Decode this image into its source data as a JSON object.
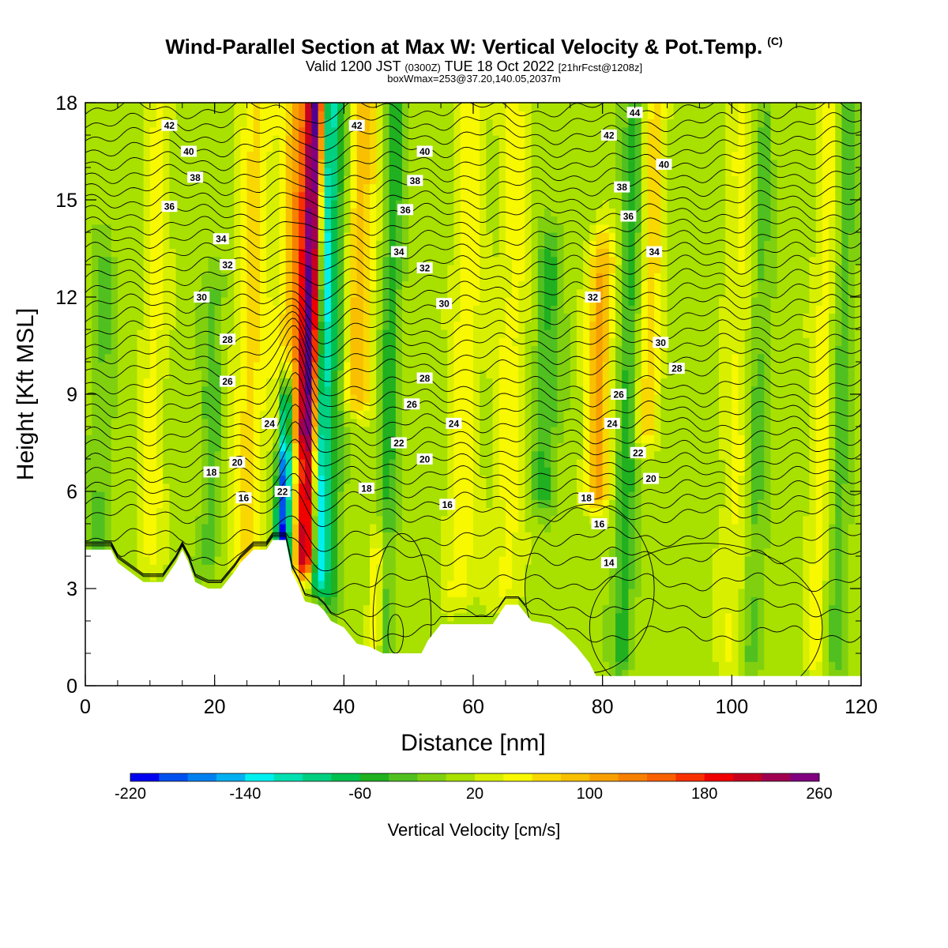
{
  "title": {
    "main": "Wind-Parallel Section at Max W: Vertical Velocity & Pot.Temp.",
    "copyright": "(C)",
    "valid_prefix": "Valid 1200 JST",
    "valid_utc": "(0300Z)",
    "valid_date": "TUE 18 Oct 2022",
    "forecast": "[21hrFcst@1208z]",
    "box_info": "boxWmax=253@37.20,140.05,2037m"
  },
  "chart_data": {
    "type": "heatmap",
    "xlabel": "Distance [nm]",
    "ylabel": "Height [Kft MSL]",
    "xlim": [
      0,
      120
    ],
    "ylim": [
      0,
      18
    ],
    "x_ticks": [
      "0",
      "20",
      "40",
      "60",
      "80",
      "100",
      "120"
    ],
    "y_ticks": [
      "0",
      "3",
      "6",
      "9",
      "12",
      "15",
      "18"
    ],
    "colorbar": {
      "label": "Vertical Velocity [cm/s]",
      "tick_labels": [
        "-220",
        "-140",
        "-60",
        "20",
        "100",
        "180",
        "260"
      ],
      "levels": [
        -220,
        -200,
        -180,
        -160,
        -140,
        -120,
        -100,
        -80,
        -60,
        -40,
        -20,
        0,
        20,
        40,
        60,
        80,
        100,
        120,
        140,
        160,
        180,
        200,
        220,
        240,
        260
      ],
      "colors": [
        "#0000f0",
        "#0050f0",
        "#0080f0",
        "#00b0f0",
        "#00f0f0",
        "#00e0b0",
        "#00d080",
        "#00c050",
        "#20b020",
        "#50c020",
        "#80d010",
        "#a8e000",
        "#d8f000",
        "#f8f800",
        "#f8d800",
        "#f8c000",
        "#f8a000",
        "#f88000",
        "#f86000",
        "#f83000",
        "#f00000",
        "#c80020",
        "#a00050",
        "#800080",
        "#500090"
      ]
    },
    "w_features": [
      {
        "x": 34,
        "ztop": 18,
        "zbot": 4,
        "w": 220,
        "width": 1.6
      },
      {
        "x": 32,
        "ztop": 18,
        "zbot": 8,
        "w": 100,
        "width": 2.5
      },
      {
        "x": 30.5,
        "ztop": 8.5,
        "zbot": 4,
        "w": -210,
        "width": 1.1
      },
      {
        "x": 36,
        "ztop": 18,
        "zbot": 3.5,
        "w": -150,
        "width": 1.2
      },
      {
        "x": 38,
        "ztop": 18,
        "zbot": 3,
        "w": -60,
        "width": 1.5
      },
      {
        "x": 42,
        "ztop": 18,
        "zbot": 9,
        "w": 80,
        "width": 2.5
      },
      {
        "x": 46,
        "ztop": 18,
        "zbot": 1,
        "w": -60,
        "width": 1.5
      },
      {
        "x": 45,
        "ztop": 4,
        "zbot": 1,
        "w": 80,
        "width": 1.3
      },
      {
        "x": 25,
        "ztop": 18,
        "zbot": 4,
        "w": 60,
        "width": 2.5
      },
      {
        "x": 19,
        "ztop": 12,
        "zbot": 4,
        "w": -40,
        "width": 1.5
      },
      {
        "x": 79,
        "ztop": 13,
        "zbot": 6,
        "w": 100,
        "width": 2.0
      },
      {
        "x": 83,
        "ztop": 18,
        "zbot": 1,
        "w": -60,
        "width": 1.5
      },
      {
        "x": 87,
        "ztop": 18,
        "zbot": 8,
        "w": 60,
        "width": 2.0
      },
      {
        "x": 71,
        "ztop": 13,
        "zbot": 6,
        "w": -50,
        "width": 2.0
      },
      {
        "x": 65,
        "ztop": 18,
        "zbot": 3,
        "w": 40,
        "width": 2.5
      },
      {
        "x": 58,
        "ztop": 18,
        "zbot": 3,
        "w": 45,
        "width": 2.5
      },
      {
        "x": 100,
        "ztop": 18,
        "zbot": 1,
        "w": 35,
        "width": 2.5
      },
      {
        "x": 103,
        "ztop": 18,
        "zbot": 1,
        "w": -40,
        "width": 1.5
      },
      {
        "x": 113,
        "ztop": 18,
        "zbot": 1,
        "w": 40,
        "width": 2.0
      },
      {
        "x": 116,
        "ztop": 18,
        "zbot": 1,
        "w": -40,
        "width": 1.5
      },
      {
        "x": 10,
        "ztop": 18,
        "zbot": 4,
        "w": 40,
        "width": 2.0
      },
      {
        "x": 2,
        "ztop": 13,
        "zbot": 4,
        "w": -30,
        "width": 1.5
      }
    ],
    "terrain": [
      [
        0,
        4.2
      ],
      [
        4,
        4.2
      ],
      [
        5,
        3.8
      ],
      [
        7,
        3.5
      ],
      [
        9,
        3.2
      ],
      [
        12,
        3.2
      ],
      [
        14,
        3.8
      ],
      [
        15,
        4.2
      ],
      [
        16,
        3.8
      ],
      [
        17,
        3.2
      ],
      [
        19,
        3.0
      ],
      [
        21,
        3.0
      ],
      [
        23,
        3.5
      ],
      [
        24,
        3.8
      ],
      [
        26,
        4.2
      ],
      [
        28,
        4.2
      ],
      [
        29,
        4.5
      ],
      [
        31,
        4.5
      ],
      [
        32,
        3.5
      ],
      [
        33,
        3.1
      ],
      [
        34,
        2.6
      ],
      [
        36,
        2.5
      ],
      [
        37,
        2.3
      ],
      [
        38,
        2.0
      ],
      [
        40,
        1.8
      ],
      [
        42,
        1.3
      ],
      [
        44,
        1.2
      ],
      [
        46,
        1.0
      ],
      [
        52,
        1.0
      ],
      [
        53,
        1.4
      ],
      [
        55,
        1.9
      ],
      [
        63,
        1.9
      ],
      [
        65,
        2.5
      ],
      [
        67,
        2.5
      ],
      [
        69,
        2.0
      ],
      [
        72,
        1.9
      ],
      [
        74,
        1.6
      ],
      [
        76,
        1.2
      ],
      [
        78,
        0.7
      ],
      [
        79,
        0.3
      ],
      [
        120,
        0.3
      ]
    ],
    "theta_base_levels": [
      1.6,
      2.4,
      3.2,
      4.0,
      4.6,
      5.3,
      5.7,
      6.1,
      6.5,
      6.9,
      7.3,
      7.7,
      8.1,
      8.5,
      8.9,
      9.3,
      9.8,
      10.2,
      10.6,
      11.0,
      11.4,
      11.8,
      12.2,
      12.6,
      13.0,
      13.4,
      13.8,
      14.2,
      14.6,
      15.0,
      15.4,
      15.8,
      16.2,
      16.6,
      17.0,
      17.4,
      17.8
    ],
    "theta_labels": [
      {
        "text": "42",
        "x": 13,
        "z": 17.3
      },
      {
        "text": "40",
        "x": 16,
        "z": 16.5
      },
      {
        "text": "38",
        "x": 17,
        "z": 15.7
      },
      {
        "text": "36",
        "x": 13,
        "z": 14.8
      },
      {
        "text": "34",
        "x": 21,
        "z": 13.8
      },
      {
        "text": "32",
        "x": 22,
        "z": 13.0
      },
      {
        "text": "30",
        "x": 18,
        "z": 12.0
      },
      {
        "text": "28",
        "x": 22,
        "z": 10.7
      },
      {
        "text": "26",
        "x": 22,
        "z": 9.4
      },
      {
        "text": "24",
        "x": 28.5,
        "z": 8.1
      },
      {
        "text": "20",
        "x": 23.5,
        "z": 6.9
      },
      {
        "text": "18",
        "x": 19.5,
        "z": 6.6
      },
      {
        "text": "16",
        "x": 24.5,
        "z": 5.8
      },
      {
        "text": "22",
        "x": 30.5,
        "z": 6.0
      },
      {
        "text": "42",
        "x": 42,
        "z": 17.3
      },
      {
        "text": "40",
        "x": 52.5,
        "z": 16.5
      },
      {
        "text": "38",
        "x": 51,
        "z": 15.6
      },
      {
        "text": "36",
        "x": 49.5,
        "z": 14.7
      },
      {
        "text": "34",
        "x": 48.5,
        "z": 13.4
      },
      {
        "text": "32",
        "x": 52.5,
        "z": 12.9
      },
      {
        "text": "30",
        "x": 55.5,
        "z": 11.8
      },
      {
        "text": "28",
        "x": 52.5,
        "z": 9.5
      },
      {
        "text": "26",
        "x": 50.5,
        "z": 8.7
      },
      {
        "text": "24",
        "x": 57,
        "z": 8.1
      },
      {
        "text": "22",
        "x": 48.5,
        "z": 7.5
      },
      {
        "text": "20",
        "x": 52.5,
        "z": 7.0
      },
      {
        "text": "18",
        "x": 43.5,
        "z": 6.1
      },
      {
        "text": "16",
        "x": 56,
        "z": 5.6
      },
      {
        "text": "44",
        "x": 85,
        "z": 17.7
      },
      {
        "text": "42",
        "x": 81,
        "z": 17.0
      },
      {
        "text": "40",
        "x": 89.5,
        "z": 16.1
      },
      {
        "text": "38",
        "x": 83,
        "z": 15.4
      },
      {
        "text": "36",
        "x": 84,
        "z": 14.5
      },
      {
        "text": "34",
        "x": 88,
        "z": 13.4
      },
      {
        "text": "32",
        "x": 78.5,
        "z": 12.0
      },
      {
        "text": "30",
        "x": 89,
        "z": 10.6
      },
      {
        "text": "28",
        "x": 91.5,
        "z": 9.8
      },
      {
        "text": "26",
        "x": 82.5,
        "z": 9.0
      },
      {
        "text": "24",
        "x": 81.5,
        "z": 8.1
      },
      {
        "text": "22",
        "x": 85.5,
        "z": 7.2
      },
      {
        "text": "20",
        "x": 87.5,
        "z": 6.4
      },
      {
        "text": "18",
        "x": 77.5,
        "z": 5.8
      },
      {
        "text": "16",
        "x": 79.5,
        "z": 5.0
      },
      {
        "text": "14",
        "x": 81,
        "z": 3.8
      }
    ]
  }
}
